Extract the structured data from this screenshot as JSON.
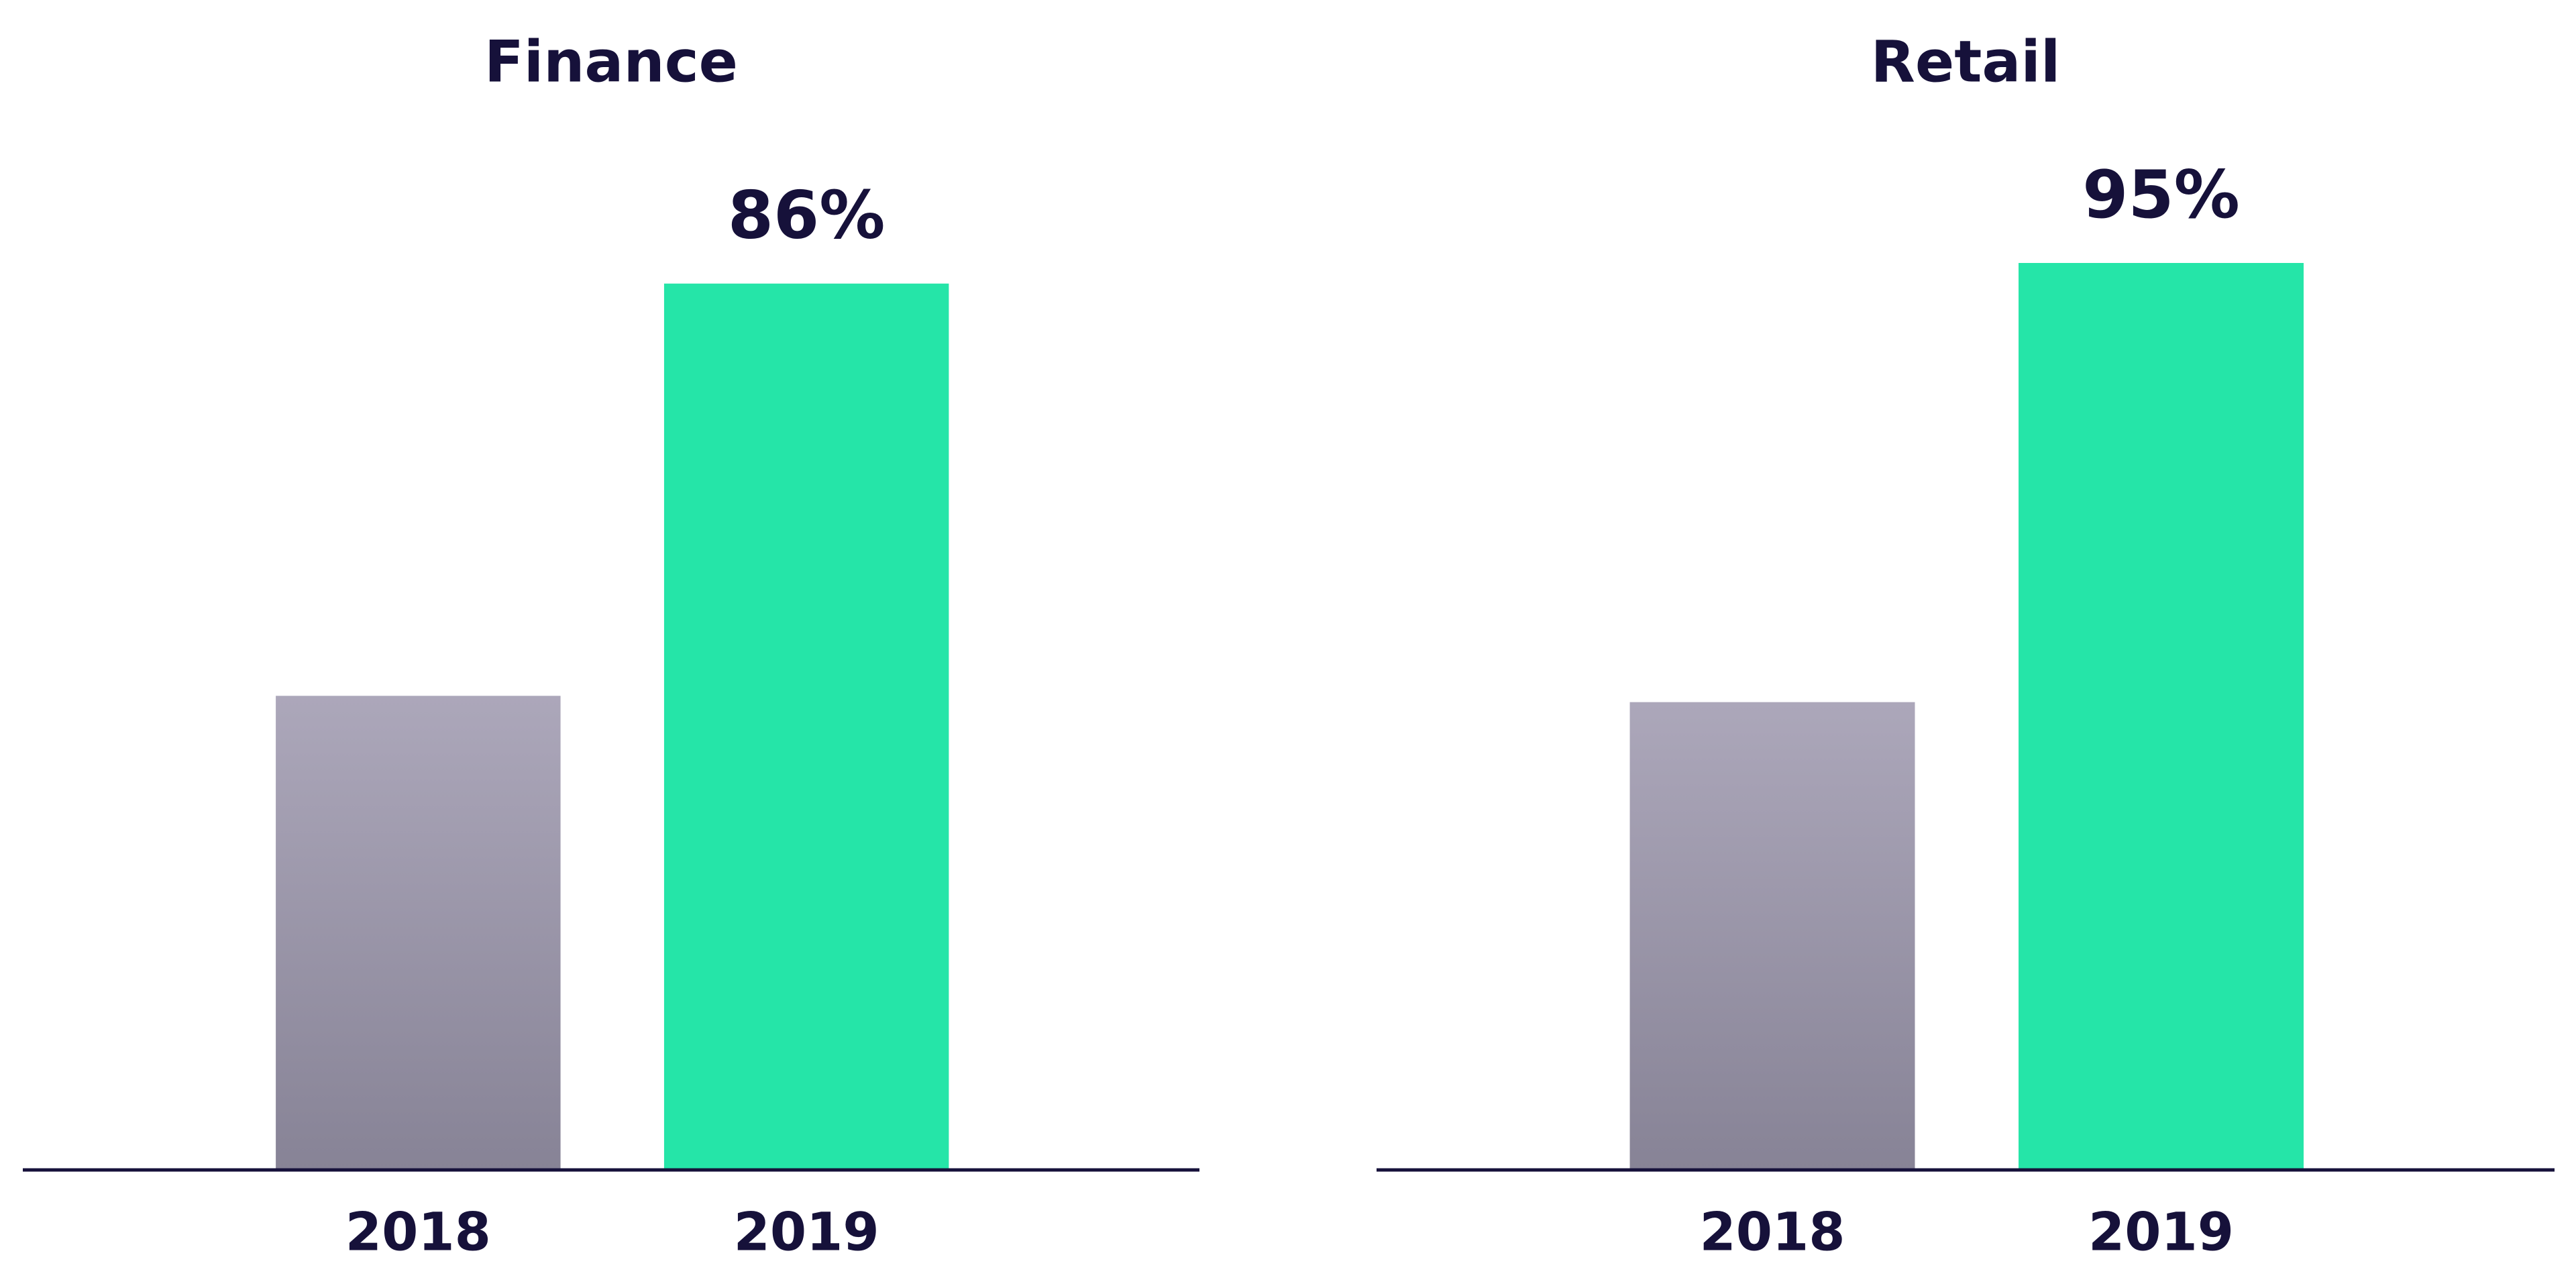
{
  "chart_data": [
    {
      "type": "bar",
      "title": "Finance",
      "categories": [
        "2018",
        "2019"
      ],
      "values": [
        46,
        86
      ],
      "value_labels": [
        null,
        "86%"
      ],
      "colors": [
        "#a9a4b7",
        "#25e5a8"
      ],
      "ylim": [
        0,
        88
      ]
    },
    {
      "type": "bar",
      "title": "Retail",
      "categories": [
        "2018",
        "2019"
      ],
      "values": [
        49,
        95
      ],
      "value_labels": [
        null,
        "95%"
      ],
      "colors": [
        "#a9a4b7",
        "#25e5a8"
      ],
      "ylim": [
        0,
        95
      ]
    }
  ]
}
